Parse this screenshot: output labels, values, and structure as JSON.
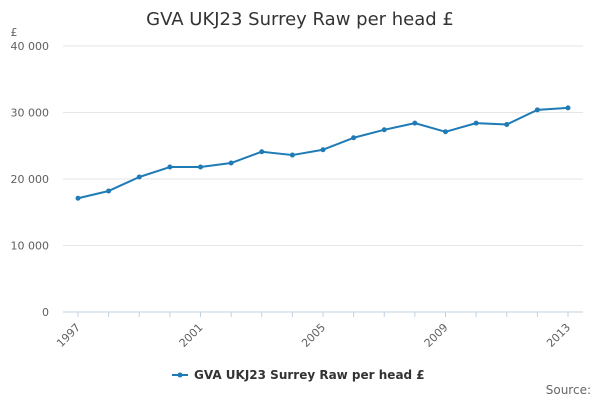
{
  "chart_data": {
    "type": "line",
    "title": "GVA UKJ23 Surrey Raw per head £",
    "ylabel": "£",
    "xlabel": "",
    "xlim": [
      1997,
      2013
    ],
    "ylim": [
      0,
      40000
    ],
    "x_ticks": [
      1997,
      2001,
      2005,
      2009,
      2013
    ],
    "y_ticks": [
      0,
      10000,
      20000,
      30000,
      40000
    ],
    "y_tick_labels": [
      "0",
      "10 000",
      "20 000",
      "30 000",
      "40 000"
    ],
    "x_tick_labels": [
      "1997",
      "2001",
      "2005",
      "2009",
      "2013"
    ],
    "grid": "horizontal",
    "legend_position": "bottom-center",
    "series": [
      {
        "name": "GVA UKJ23 Surrey Raw per head £",
        "color": "#1f7bb6",
        "x": [
          1997,
          1998,
          1999,
          2000,
          2001,
          2002,
          2003,
          2004,
          2005,
          2006,
          2007,
          2008,
          2009,
          2010,
          2011,
          2012,
          2013
        ],
        "values": [
          17100,
          18200,
          20300,
          21800,
          21800,
          22400,
          24100,
          23600,
          24400,
          26200,
          27400,
          28400,
          27100,
          28400,
          28200,
          30400,
          30700
        ]
      }
    ]
  },
  "source_label": "Source:"
}
